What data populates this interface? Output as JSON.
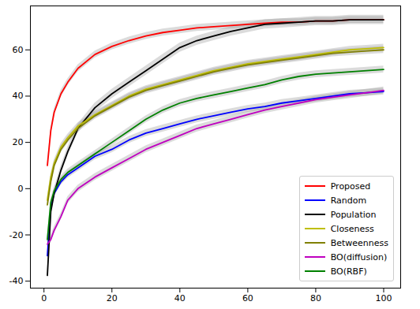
{
  "chart_data": {
    "type": "line",
    "x": [
      1,
      2,
      3,
      5,
      7,
      10,
      15,
      20,
      25,
      30,
      35,
      40,
      45,
      50,
      55,
      60,
      65,
      70,
      75,
      80,
      85,
      90,
      95,
      100
    ],
    "xlim": [
      -4,
      105
    ],
    "xticks": [
      0,
      20,
      40,
      60,
      80,
      100
    ],
    "ylim": [
      -43,
      79
    ],
    "yticks": [
      -40,
      -20,
      0,
      20,
      40,
      60
    ],
    "legend": "lower right",
    "grid": false,
    "series": [
      {
        "name": "Proposed",
        "color": "#ff0000",
        "error": 1.5,
        "values": [
          10,
          25,
          33,
          41,
          46,
          52,
          58,
          61.5,
          64,
          66,
          67.5,
          68.5,
          69.5,
          70,
          70.5,
          71,
          71.5,
          72,
          72,
          72.5,
          72.5,
          73,
          73,
          73
        ]
      },
      {
        "name": "Random",
        "color": "#0000ff",
        "error": 1.5,
        "values": [
          -29,
          -8,
          -2,
          3,
          6,
          9,
          14,
          17,
          21,
          24,
          26,
          28,
          30,
          31.5,
          33,
          34.5,
          35.5,
          37,
          38,
          39,
          40,
          41,
          41.5,
          42
        ]
      },
      {
        "name": "Population",
        "color": "#000000",
        "error": 2,
        "values": [
          -37.5,
          -10,
          -2,
          8,
          16,
          26,
          35,
          41,
          46,
          51,
          56,
          61,
          64,
          66,
          68,
          69.5,
          71,
          71.5,
          72,
          72.5,
          72.5,
          73,
          73,
          73
        ]
      },
      {
        "name": "Closeness",
        "color": "#bfbf00",
        "error": 1.5,
        "values": [
          -5,
          5,
          11,
          18,
          22,
          27,
          32,
          36,
          40,
          43,
          45,
          47,
          49,
          51,
          52.5,
          54,
          55,
          56,
          57,
          58,
          59,
          60,
          60.5,
          61
        ]
      },
      {
        "name": "Betweenness",
        "color": "#808000",
        "error": 1.5,
        "values": [
          -7,
          3,
          10,
          17,
          21,
          26,
          31.5,
          35.5,
          39.5,
          42.5,
          44.5,
          46.5,
          48.5,
          50.5,
          52,
          53.5,
          54.5,
          55.5,
          56.5,
          57.5,
          58.5,
          59,
          59.5,
          60
        ]
      },
      {
        "name": "BO(diffusion)",
        "color": "#bf00bf",
        "error": 1.5,
        "values": [
          -24,
          -22,
          -18,
          -12,
          -5,
          0,
          5,
          9,
          13,
          17,
          20,
          23,
          26,
          28,
          30,
          32,
          34,
          35.5,
          37,
          38.5,
          39.5,
          40.5,
          41.5,
          42.5
        ]
      },
      {
        "name": "BO(RBF)",
        "color": "#008000",
        "error": 1.5,
        "values": [
          -22,
          -6,
          -1,
          4,
          7,
          10,
          15,
          20,
          25,
          30,
          34,
          37,
          39,
          40.5,
          42,
          43.5,
          45,
          47,
          48.5,
          49.5,
          50,
          50.5,
          51,
          51.5
        ]
      }
    ]
  }
}
